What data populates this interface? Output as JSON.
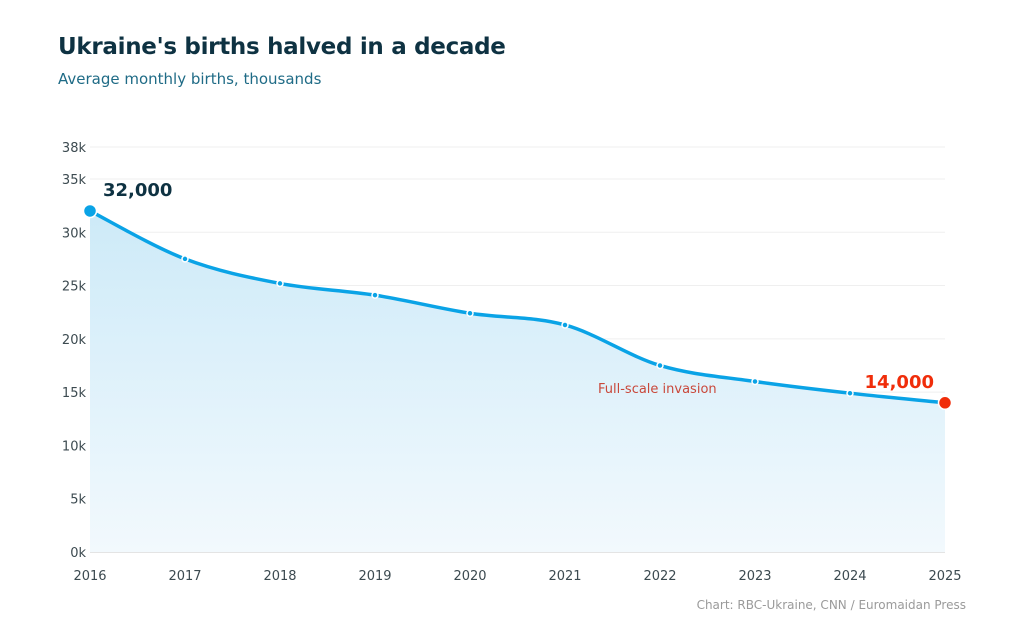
{
  "title": "Ukraine's births halved in a decade",
  "subtitle": "Average monthly births, thousands",
  "credit": "Chart: RBC-Ukraine, CNN / Euromaidan Press",
  "chart_data": {
    "type": "area",
    "title": "Ukraine's births halved in a decade",
    "subtitle": "Average monthly births, thousands",
    "x": [
      2016,
      2017,
      2018,
      2019,
      2020,
      2021,
      2022,
      2023,
      2024,
      2025
    ],
    "values": [
      32.0,
      27.5,
      25.2,
      24.1,
      22.4,
      21.3,
      17.5,
      16.0,
      14.9,
      14.0
    ],
    "unit": "thousands",
    "xlim": [
      2016,
      2025
    ],
    "ylim": [
      0,
      38
    ],
    "yticks": [
      "0k",
      "5k",
      "10k",
      "15k",
      "20k",
      "25k",
      "30k",
      "35k",
      "38k"
    ],
    "ytick_values": [
      0,
      5,
      10,
      15,
      20,
      25,
      30,
      35,
      38
    ],
    "xticks": [
      "2016",
      "2017",
      "2018",
      "2019",
      "2020",
      "2021",
      "2022",
      "2023",
      "2024",
      "2025"
    ],
    "grid": true,
    "annotations": [
      {
        "text": "32,000",
        "x": 2016,
        "y": 32.0,
        "color": "#0e3242"
      },
      {
        "text": "14,000",
        "x": 2025,
        "y": 14.0,
        "color": "#f02d0a"
      },
      {
        "text": "Full-scale invasion",
        "x": 2022,
        "y": 15.5,
        "color": "#c9483a"
      }
    ],
    "colors": {
      "line": "#0aa3e6",
      "area": "#d6eefa",
      "end_point": "#f02d0a"
    }
  }
}
